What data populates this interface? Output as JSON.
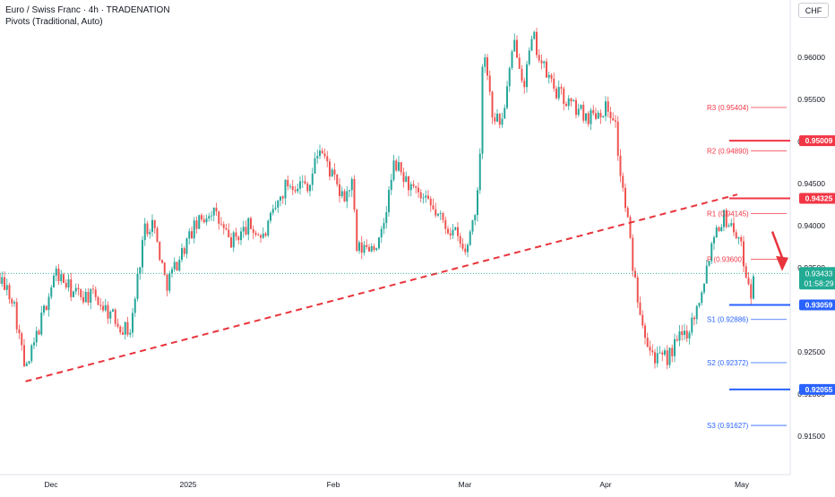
{
  "header": {
    "title": "Euro / Swiss Franc · 4h · TRADENATION",
    "subtitle": "Pivots (Traditional, Auto)",
    "currency": "CHF"
  },
  "colors": {
    "up": "#26a69a",
    "down": "#ef5350",
    "pivot_resistance": "#f23645",
    "pivot_support": "#2962ff",
    "trendline": "#e8343c",
    "last_price": "#22ab94"
  },
  "chart_data": {
    "type": "candlestick",
    "title": "Euro / Swiss Franc · 4h · TRADENATION",
    "currency": "CHF",
    "x_tick_labels": [
      "Dec",
      "2025",
      "Feb",
      "Mar",
      "Apr",
      "May"
    ],
    "y_tick_labels": [
      "0.96000",
      "0.95500",
      "0.95000",
      "0.94500",
      "0.94000",
      "0.93500",
      "0.92500",
      "0.92000",
      "0.91500"
    ],
    "ylim": [
      0.9105,
      0.9652
    ],
    "approx_price_path": [
      {
        "t": "Nov 26",
        "p": 0.9355
      },
      {
        "t": "Nov 28",
        "p": 0.9315
      },
      {
        "t": "Nov 29",
        "p": 0.9225
      },
      {
        "t": "Dec 2",
        "p": 0.9345
      },
      {
        "t": "Dec 6",
        "p": 0.932
      },
      {
        "t": "Dec 11",
        "p": 0.9315
      },
      {
        "t": "Dec 17",
        "p": 0.928
      },
      {
        "t": "Dec 19",
        "p": 0.9275
      },
      {
        "t": "Dec 22",
        "p": 0.9395
      },
      {
        "t": "Dec 24",
        "p": 0.9405
      },
      {
        "t": "Dec 27",
        "p": 0.933
      },
      {
        "t": "Jan 2",
        "p": 0.9395
      },
      {
        "t": "Jan 6",
        "p": 0.942
      },
      {
        "t": "Jan 10",
        "p": 0.938
      },
      {
        "t": "Jan 14",
        "p": 0.94
      },
      {
        "t": "Jan 17",
        "p": 0.9385
      },
      {
        "t": "Jan 22",
        "p": 0.945
      },
      {
        "t": "Jan 27",
        "p": 0.945
      },
      {
        "t": "Jan 29",
        "p": 0.9495
      },
      {
        "t": "Feb 3",
        "p": 0.943
      },
      {
        "t": "Feb 5",
        "p": 0.945
      },
      {
        "t": "Feb 6",
        "p": 0.937
      },
      {
        "t": "Feb 11",
        "p": 0.938
      },
      {
        "t": "Feb 14",
        "p": 0.9475
      },
      {
        "t": "Feb 18",
        "p": 0.944
      },
      {
        "t": "Feb 22",
        "p": 0.942
      },
      {
        "t": "Feb 25",
        "p": 0.94
      },
      {
        "t": "Feb 27",
        "p": 0.939
      },
      {
        "t": "Mar 1",
        "p": 0.9365
      },
      {
        "t": "Mar 4",
        "p": 0.944
      },
      {
        "t": "Mar 5",
        "p": 0.962
      },
      {
        "t": "Mar 7",
        "p": 0.9535
      },
      {
        "t": "Mar 9",
        "p": 0.952
      },
      {
        "t": "Mar 12",
        "p": 0.962
      },
      {
        "t": "Mar 14",
        "p": 0.957
      },
      {
        "t": "Mar 16",
        "p": 0.9625
      },
      {
        "t": "Mar 18",
        "p": 0.959
      },
      {
        "t": "Mar 21",
        "p": 0.956
      },
      {
        "t": "Mar 24",
        "p": 0.9545
      },
      {
        "t": "Mar 28",
        "p": 0.953
      },
      {
        "t": "Apr 1",
        "p": 0.954
      },
      {
        "t": "Apr 3",
        "p": 0.953
      },
      {
        "t": "Apr 4",
        "p": 0.947
      },
      {
        "t": "Apr 6",
        "p": 0.94
      },
      {
        "t": "Apr 7",
        "p": 0.935
      },
      {
        "t": "Apr 9",
        "p": 0.929
      },
      {
        "t": "Apr 11",
        "p": 0.925
      },
      {
        "t": "Apr 13",
        "p": 0.924
      },
      {
        "t": "Apr 15",
        "p": 0.9245
      },
      {
        "t": "Apr 17",
        "p": 0.9265
      },
      {
        "t": "Apr 19",
        "p": 0.9275
      },
      {
        "t": "Apr 21",
        "p": 0.93
      },
      {
        "t": "Apr 23",
        "p": 0.9345
      },
      {
        "t": "Apr 25",
        "p": 0.9395
      },
      {
        "t": "Apr 27",
        "p": 0.941
      },
      {
        "t": "Apr 28",
        "p": 0.9405
      },
      {
        "t": "Apr 30",
        "p": 0.939
      },
      {
        "t": "May 2",
        "p": 0.9355
      },
      {
        "t": "May 4",
        "p": 0.932
      },
      {
        "t": "May 5",
        "p": 0.933
      },
      {
        "t": "May 6",
        "p": 0.9343
      }
    ],
    "last_price": {
      "value": "0.93433",
      "countdown": "01:58:29"
    },
    "pivots": [
      {
        "label": "R3 (0.95404)",
        "value": 0.95404,
        "kind": "R"
      },
      {
        "label": "R2 (0.94890)",
        "value": 0.9489,
        "kind": "R"
      },
      {
        "label": "R1 (0.94145)",
        "value": 0.94145,
        "kind": "R"
      },
      {
        "label": "P (0.93600)",
        "value": 0.936,
        "kind": "P"
      },
      {
        "label": "S1 (0.92886)",
        "value": 0.92886,
        "kind": "S"
      },
      {
        "label": "S2 (0.92372)",
        "value": 0.92372,
        "kind": "S"
      },
      {
        "label": "S3 (0.91627)",
        "value": 0.91627,
        "kind": "S"
      }
    ],
    "horizontal_levels": [
      {
        "value": 0.95009,
        "label": "0.95009",
        "color": "#f23645"
      },
      {
        "value": 0.94325,
        "label": "0.94325",
        "color": "#f23645"
      },
      {
        "value": 0.93059,
        "label": "0.93059",
        "color": "#2962ff"
      },
      {
        "value": 0.92055,
        "label": "0.92055",
        "color": "#2962ff"
      }
    ],
    "trendline": {
      "from": {
        "t": "Nov 29",
        "p": 0.9215
      },
      "to": {
        "t": "Apr 30",
        "p": 0.9437
      },
      "style": "dashed"
    },
    "annotation_arrow": {
      "direction": "down",
      "color": "#e8343c"
    }
  }
}
